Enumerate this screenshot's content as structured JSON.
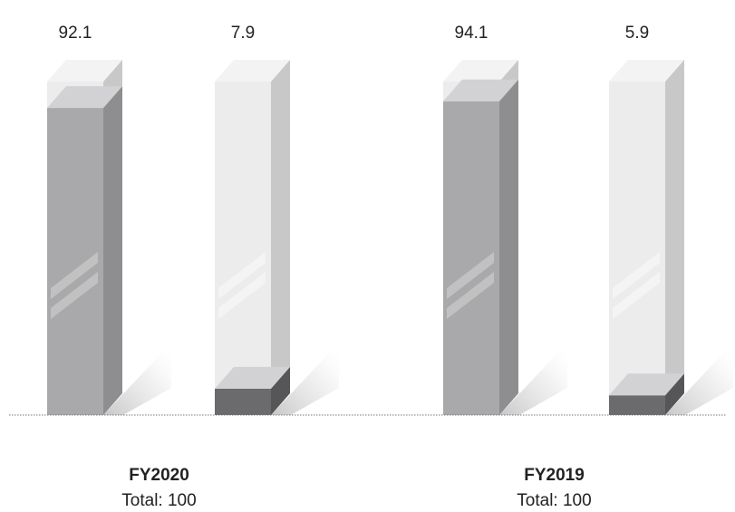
{
  "chart_data": {
    "type": "bar",
    "groups": [
      {
        "name": "FY2020",
        "total_label": "Total: 100",
        "bars": [
          {
            "value": 92.1,
            "label": "92.1"
          },
          {
            "value": 7.9,
            "label": "7.9"
          }
        ]
      },
      {
        "name": "FY2019",
        "total_label": "Total: 100",
        "bars": [
          {
            "value": 94.1,
            "label": "94.1"
          },
          {
            "value": 5.9,
            "label": "5.9"
          }
        ]
      }
    ],
    "ylim": [
      0,
      100
    ],
    "grid": false,
    "colors": {
      "major_fill": "#a9a9ab",
      "major_side": "#8e8e90",
      "minor_fill": "#6b6b6d",
      "minor_side": "#565658",
      "glass_front": "#ececec",
      "glass_side": "#c8c8c8",
      "glass_top": "#f3f3f3",
      "liquid_top": "#d2d2d4",
      "baseline": "#777777"
    }
  }
}
